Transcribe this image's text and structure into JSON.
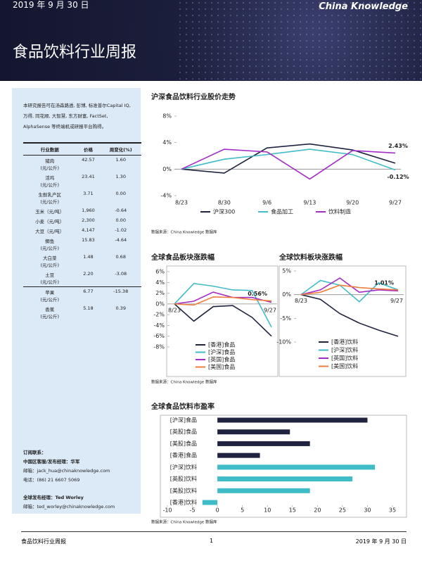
{
  "header": {
    "date": "2019 年 9 月 30 日",
    "brand": "China Knowledge",
    "title": "食品饮料行业周报"
  },
  "sidebar": {
    "intro": "本研究报告可在汤森路透, 彭博, 标准普尔Capital IQ,万得, 同花顺, 大智慧, 东方财富, FactSet, AlphaSense 等终端机或研报平台购得。",
    "table": {
      "headers": [
        "行业数据",
        "价格",
        "周变化(%)"
      ],
      "rows": [
        [
          "猪肉",
          "(元/公斤)",
          "42.57",
          "1.60"
        ],
        [
          "活鸡",
          "(元/公斤)",
          "23.41",
          "1.30"
        ],
        [
          "生鲜乳产区",
          "(元/公斤)",
          "3.71",
          "0.00"
        ],
        [
          "玉米（元/吨）",
          null,
          "1,960",
          "-0.64"
        ],
        [
          "小麦（元/吨）",
          null,
          "2,300",
          "0.00"
        ],
        [
          "大豆（元/吨）",
          null,
          "4,147",
          "-1.02"
        ],
        [
          "鲫鱼",
          "(元/公斤)",
          "15.83",
          "-4.64"
        ],
        [
          "大白菜",
          "(元/公斤)",
          "1.48",
          "0.68"
        ],
        [
          "土豆",
          "(元/公斤)",
          "2.20",
          "-3.08"
        ],
        [
          "苹果",
          "(元/公斤)",
          "6.77",
          "-15.38"
        ],
        [
          "香蕉",
          "(元/公斤)",
          "5.18",
          "0.39"
        ]
      ]
    },
    "contact": [
      "订阅联系：",
      "中国区客服/发布经理：华军",
      "邮箱：jack_hua@chinaknowledge.com",
      "电话：(86) 21 6607 5069",
      "全球发布经理：Ted Worley",
      "邮箱：ted_worley@chinaknowledge.com"
    ]
  },
  "chart_data": [
    {
      "type": "line",
      "title": "沪深食品饮料行业股价走势",
      "source": "数据来源：China Knowledge 数据库",
      "categories": [
        "8/23",
        "8/30",
        "9/6",
        "9/13",
        "9/20",
        "9/27"
      ],
      "ylim": [
        -4,
        8
      ],
      "yticks": [
        {
          "value": -4,
          "label": "-4%"
        },
        {
          "value": 0,
          "label": "0%"
        },
        {
          "value": 4,
          "label": "4%"
        },
        {
          "value": 8,
          "label": "8%"
        }
      ],
      "series": [
        {
          "name": "沪深300",
          "color": "#1f2340",
          "values": [
            0,
            -0.6,
            3.2,
            3.8,
            2.9,
            0.9
          ]
        },
        {
          "name": "食品加工",
          "color": "#3fbcc8",
          "values": [
            0,
            1.5,
            2.2,
            3.0,
            2.2,
            -0.12
          ],
          "value_labels": [
            null,
            null,
            null,
            null,
            null,
            "-0.12%"
          ]
        },
        {
          "name": "饮料制造",
          "color": "#a32cc4",
          "values": [
            0,
            3.0,
            2.6,
            -1.5,
            2.8,
            2.43
          ],
          "value_labels": [
            null,
            null,
            null,
            null,
            null,
            "2.43%"
          ]
        }
      ]
    },
    {
      "type": "line",
      "title": "全球食品板块涨跌幅",
      "categories": [
        "8/23",
        null,
        null,
        null,
        null,
        "9/27"
      ],
      "ylim": [
        -8,
        6
      ],
      "yticks": [
        {
          "value": -8,
          "label": "-8%"
        },
        {
          "value": -6,
          "label": "-6%"
        },
        {
          "value": -4,
          "label": "-4%"
        },
        {
          "value": -2,
          "label": "-2%"
        },
        {
          "value": 0,
          "label": "0%"
        },
        {
          "value": 2,
          "label": "2%"
        },
        {
          "value": 4,
          "label": "4%"
        },
        {
          "value": 6,
          "label": "6%"
        }
      ],
      "series": [
        {
          "name": "[香港]食品",
          "color": "#1f2340",
          "values": [
            0,
            -3.2,
            -0.5,
            -0.3,
            -2.5,
            -6.0
          ]
        },
        {
          "name": "[沪深]食品",
          "color": "#3fbcc8",
          "values": [
            0,
            3.8,
            3.3,
            2.6,
            2.5,
            -4.3
          ]
        },
        {
          "name": "[英国]食品",
          "color": "#a32cc4",
          "values": [
            0,
            0.5,
            2.2,
            1.2,
            1.2,
            0.3
          ]
        },
        {
          "name": "[美国]食品",
          "color": "#f07f3c",
          "values": [
            0,
            -0.2,
            1.3,
            1.2,
            0.8,
            0.56
          ],
          "value_labels": [
            null,
            null,
            null,
            null,
            null,
            "0.56%"
          ]
        }
      ]
    },
    {
      "type": "line",
      "title": "全球饮料板块涨跌幅",
      "categories": [
        "8/23",
        null,
        null,
        null,
        null,
        "9/27"
      ],
      "ylim": [
        -10,
        5
      ],
      "yticks": [
        {
          "value": -10,
          "label": "-10%"
        },
        {
          "value": -5,
          "label": "-5%"
        },
        {
          "value": 0,
          "label": "0%"
        },
        {
          "value": 5,
          "label": "5%"
        }
      ],
      "series": [
        {
          "name": "[香港]饮料",
          "color": "#1f2340",
          "values": [
            0,
            -1,
            -4,
            -6,
            -7.5,
            -8.8
          ]
        },
        {
          "name": "[沪深]饮料",
          "color": "#3fbcc8",
          "values": [
            0,
            3,
            2,
            -1.5,
            2.5,
            1.01
          ],
          "value_labels": [
            null,
            null,
            null,
            null,
            null,
            "1.01%"
          ]
        },
        {
          "name": "[英国]饮料",
          "color": "#a32cc4",
          "values": [
            0,
            1,
            3.5,
            0.5,
            1,
            0.8
          ]
        },
        {
          "name": "[美国]饮料",
          "color": "#f07f3c",
          "values": [
            0,
            0.5,
            2,
            1.5,
            1.2,
            1.0
          ]
        }
      ]
    },
    {
      "type": "hbar",
      "title": "全球食品饮料市盈率",
      "source": "数据来源：China Knowledge 数据库",
      "categories": [
        "[沪深]食品",
        "[英股]食品",
        "[美股]食品",
        "[香港]食品",
        "[沪深]饮料",
        "[英股]饮料",
        "[美股]饮料",
        "[香港]饮料"
      ],
      "values": [
        30,
        14.5,
        18.5,
        8.5,
        31.5,
        27,
        18.5,
        -3
      ],
      "colors": [
        "#1f2340",
        "#1f2340",
        "#1f2340",
        "#1f2340",
        "#3fbcc8",
        "#3fbcc8",
        "#3fbcc8",
        "#3fbcc8"
      ],
      "xlim": [
        -10,
        35
      ],
      "xticks": [
        -10,
        -5,
        0,
        5,
        10,
        15,
        20,
        25,
        30,
        35
      ]
    }
  ],
  "source2": "数据来源：China Knowledge 数据库",
  "footer": {
    "left": "食品饮料行业周报",
    "page": "1",
    "right": "2019 年 9 月 30 日"
  }
}
